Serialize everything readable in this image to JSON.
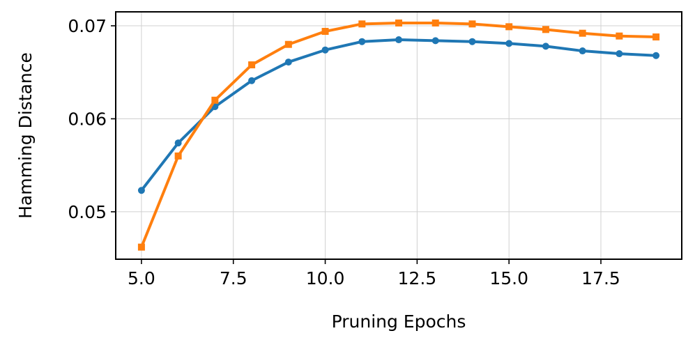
{
  "chart_data": {
    "type": "line",
    "title": "",
    "xlabel": "Pruning Epochs",
    "ylabel": "Hamming Distance",
    "xlim": [
      4.3,
      19.7
    ],
    "ylim": [
      0.0449,
      0.0715
    ],
    "grid": true,
    "legend": "none",
    "x_ticks": [
      {
        "value": 5.0,
        "label": "5.0"
      },
      {
        "value": 7.5,
        "label": "7.5"
      },
      {
        "value": 10.0,
        "label": "10.0"
      },
      {
        "value": 12.5,
        "label": "12.5"
      },
      {
        "value": 15.0,
        "label": "15.0"
      },
      {
        "value": 17.5,
        "label": "17.5"
      }
    ],
    "y_ticks": [
      {
        "value": 0.05,
        "label": "0.05"
      },
      {
        "value": 0.06,
        "label": "0.06"
      },
      {
        "value": 0.07,
        "label": "0.07"
      }
    ],
    "x": [
      5,
      6,
      7,
      8,
      9,
      10,
      11,
      12,
      13,
      14,
      15,
      16,
      17,
      18,
      19
    ],
    "series": [
      {
        "color": "#1f77b4",
        "marker": "circle",
        "values": [
          0.0523,
          0.0574,
          0.0613,
          0.0641,
          0.0661,
          0.0674,
          0.0683,
          0.0685,
          0.0684,
          0.0683,
          0.0681,
          0.0678,
          0.0673,
          0.067,
          0.0668
        ]
      },
      {
        "color": "#ff7f0e",
        "marker": "square",
        "values": [
          0.0462,
          0.056,
          0.062,
          0.0658,
          0.068,
          0.0694,
          0.0702,
          0.0703,
          0.0703,
          0.0702,
          0.0699,
          0.0696,
          0.0692,
          0.0689,
          0.0688
        ]
      }
    ]
  }
}
